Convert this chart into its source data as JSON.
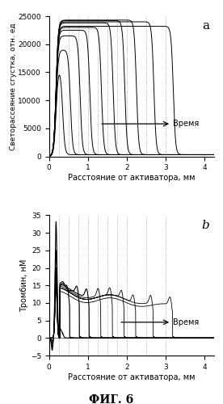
{
  "title_a": "a",
  "title_b": "b",
  "xlabel": "Расстояние от активатора, мм",
  "ylabel_a": "Светорассеяние сгустка, отн. ед",
  "ylabel_b": "Тромбин, нМ",
  "time_label": "Время",
  "fig_label": "ФИГ. 6",
  "xlim": [
    0,
    4.25
  ],
  "ylim_a": [
    0,
    25000
  ],
  "ylim_b": [
    -5,
    35
  ],
  "xticks": [
    0,
    1,
    2,
    3,
    4
  ],
  "yticks_a": [
    0,
    5000,
    10000,
    15000,
    20000,
    25000
  ],
  "yticks_b": [
    -5,
    0,
    5,
    10,
    15,
    20,
    25,
    30,
    35
  ],
  "dashed_x": [
    0.25,
    0.5,
    0.75,
    1.0,
    1.25,
    1.5,
    1.75,
    2.0,
    2.5,
    3.0
  ],
  "background_color": "#ffffff"
}
